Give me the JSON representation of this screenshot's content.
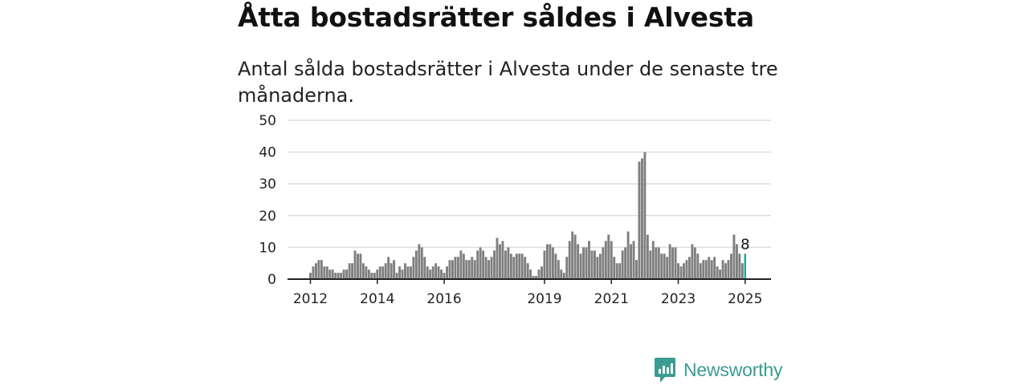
{
  "header": {
    "title": "Åtta bostadsrätter såldes i Alvesta",
    "subtitle": "Antal sålda bostadsrätter i Alvesta under de senaste tre månaderna."
  },
  "brand": {
    "name": "Newsworthy",
    "color": "#3a9c92"
  },
  "colors": {
    "bar": "#7f7f80",
    "highlight": "#20a49a",
    "grid": "#dddddd",
    "axis": "#222222"
  },
  "chart_data": {
    "type": "bar",
    "ylim": [
      0,
      50
    ],
    "yticks": [
      0,
      10,
      20,
      30,
      40,
      50
    ],
    "xtick_labels": [
      "2012",
      "2014",
      "2016",
      "2019",
      "2021",
      "2023",
      "2025"
    ],
    "xtick_months": [
      0,
      24,
      48,
      84,
      108,
      132,
      156
    ],
    "start": "2012-01",
    "values": [
      2,
      4,
      5,
      6,
      6,
      4,
      4,
      3,
      3,
      2,
      2,
      2,
      3,
      3,
      5,
      5,
      9,
      8,
      8,
      5,
      4,
      3,
      2,
      2,
      3,
      4,
      4,
      5,
      7,
      5,
      6,
      2,
      4,
      3,
      5,
      4,
      4,
      7,
      9,
      11,
      10,
      7,
      4,
      3,
      4,
      5,
      4,
      3,
      2,
      4,
      6,
      6,
      7,
      7,
      9,
      8,
      6,
      6,
      7,
      6,
      9,
      10,
      9,
      7,
      6,
      7,
      9,
      13,
      11,
      12,
      9,
      10,
      8,
      7,
      8,
      8,
      8,
      7,
      5,
      3,
      1,
      1,
      3,
      4,
      9,
      11,
      11,
      10,
      8,
      6,
      3,
      2,
      7,
      12,
      15,
      14,
      11,
      8,
      10,
      10,
      12,
      9,
      9,
      7,
      8,
      10,
      12,
      14,
      12,
      7,
      5,
      5,
      9,
      10,
      15,
      11,
      12,
      6,
      37,
      38,
      40,
      14,
      9,
      12,
      10,
      10,
      8,
      8,
      7,
      11,
      10,
      10,
      5,
      4,
      5,
      6,
      7,
      11,
      10,
      8,
      5,
      6,
      6,
      7,
      6,
      7,
      4,
      3,
      6,
      5,
      6,
      8,
      14,
      11,
      8,
      5,
      8
    ],
    "highlight_label": "8",
    "grid": true
  }
}
